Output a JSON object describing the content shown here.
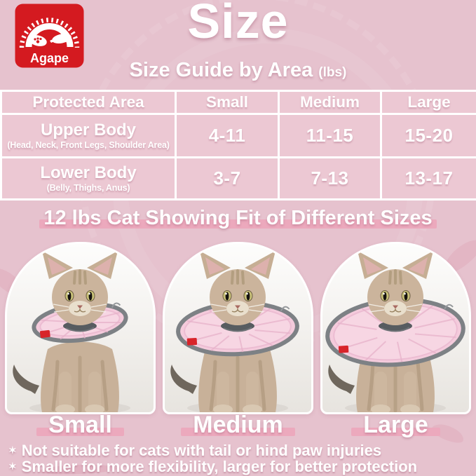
{
  "logo": {
    "brand": "Agape",
    "red": "#d41a20"
  },
  "header": {
    "title": "Size",
    "subtitle": "Size Guide by Area",
    "unit": "(lbs)"
  },
  "size_table": {
    "col_headers": [
      "Protected Area",
      "Small",
      "Medium",
      "Large"
    ],
    "rows": [
      {
        "area": "Upper Body",
        "area_detail": "(Head, Neck, Front Legs, Shoulder Area)",
        "values": [
          "4-11",
          "11-15",
          "15-20"
        ]
      },
      {
        "area": "Lower Body",
        "area_detail": "(Belly, Thighs, Anus)",
        "values": [
          "3-7",
          "7-13",
          "13-17"
        ]
      }
    ]
  },
  "fit_section": {
    "heading": "12 lbs Cat Showing Fit of Different Sizes",
    "sizes": [
      {
        "label": "Small"
      },
      {
        "label": "Medium"
      },
      {
        "label": "Large"
      }
    ]
  },
  "notes": [
    {
      "marker": "✶",
      "text": "Not suitable for cats with tail or hind paw injuries"
    },
    {
      "marker": "✶",
      "text": "Smaller for more flexibility, larger for better protection"
    }
  ],
  "colors": {
    "background": "#e6c2ce",
    "table_cell": "#ecc8d3",
    "highlight_bar": "#eca9bd",
    "cone_pink": "#f4cbdc",
    "cone_rim_gray": "#7d8185",
    "text": "#ffffff"
  }
}
